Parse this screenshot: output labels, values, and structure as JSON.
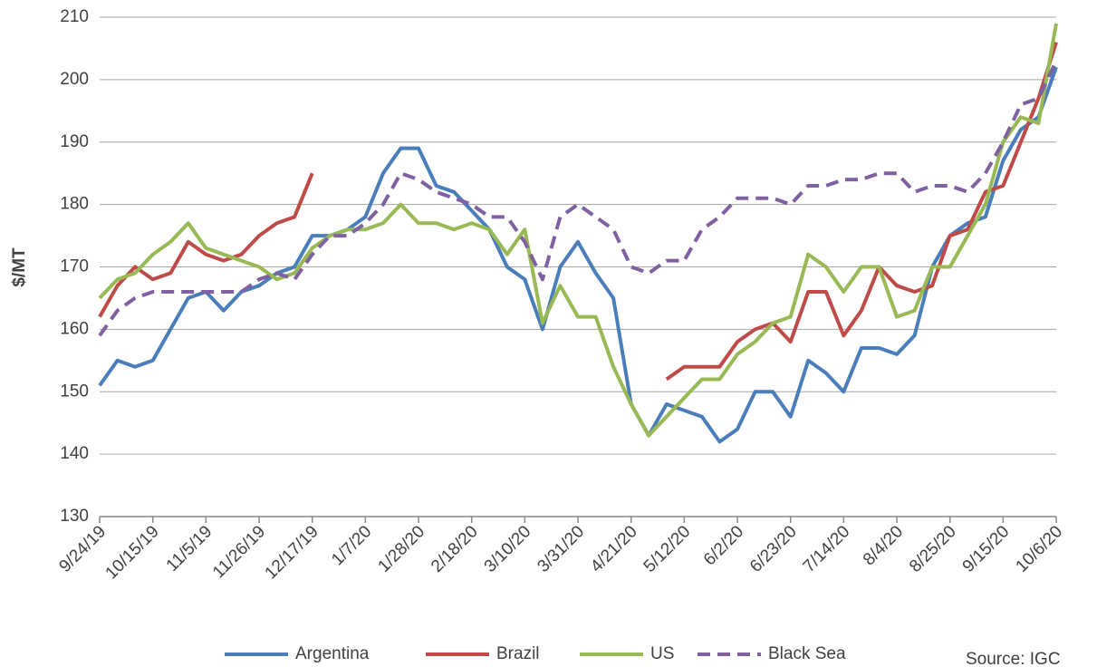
{
  "chart_data": {
    "type": "line",
    "y_label": "$/MT",
    "annotation": "Source: IGC",
    "x": [
      "9/24/19",
      "10/1/19",
      "10/8/19",
      "10/15/19",
      "10/22/19",
      "10/29/19",
      "11/5/19",
      "11/12/19",
      "11/19/19",
      "11/26/19",
      "12/3/19",
      "12/10/19",
      "12/17/19",
      "12/24/19",
      "12/31/19",
      "1/7/20",
      "1/14/20",
      "1/21/20",
      "1/28/20",
      "2/4/20",
      "2/11/20",
      "2/18/20",
      "2/25/20",
      "3/3/20",
      "3/10/20",
      "3/17/20",
      "3/24/20",
      "3/31/20",
      "4/7/20",
      "4/14/20",
      "4/21/20",
      "4/28/20",
      "5/5/20",
      "5/12/20",
      "5/19/20",
      "5/26/20",
      "6/2/20",
      "6/9/20",
      "6/16/20",
      "6/23/20",
      "6/30/20",
      "7/7/20",
      "7/14/20",
      "7/21/20",
      "7/28/20",
      "8/4/20",
      "8/11/20",
      "8/18/20",
      "8/25/20",
      "9/1/20",
      "9/8/20",
      "9/15/20",
      "9/22/20",
      "9/29/20",
      "10/6/20"
    ],
    "xtick_step": 3,
    "ylim": [
      130,
      210
    ],
    "yticks": [
      130,
      140,
      150,
      160,
      170,
      180,
      190,
      200,
      210
    ],
    "grid": true,
    "legend": "bottom",
    "series": [
      {
        "name": "Argentina",
        "color": "#4a7ebb",
        "values": [
          151,
          155,
          154,
          155,
          160,
          165,
          166,
          163,
          166,
          167,
          169,
          170,
          175,
          175,
          176,
          178,
          185,
          189,
          189,
          183,
          182,
          179,
          176,
          170,
          168,
          160,
          170,
          174,
          169,
          165,
          148,
          143,
          148,
          147,
          146,
          142,
          144,
          150,
          150,
          146,
          155,
          153,
          150,
          157,
          157,
          156,
          159,
          170,
          175,
          177,
          178,
          187,
          192,
          194,
          202
        ]
      },
      {
        "name": "Brazil",
        "color": "#be4b48",
        "values": [
          162,
          167,
          170,
          168,
          169,
          174,
          172,
          171,
          172,
          175,
          177,
          178,
          185,
          null,
          null,
          null,
          null,
          null,
          null,
          null,
          null,
          null,
          null,
          null,
          null,
          null,
          null,
          null,
          null,
          null,
          null,
          null,
          152,
          154,
          154,
          154,
          158,
          160,
          161,
          158,
          166,
          166,
          159,
          163,
          170,
          167,
          166,
          167,
          175,
          176,
          182,
          183,
          190,
          197,
          206
        ]
      },
      {
        "name": "US",
        "color": "#98b954",
        "values": [
          165,
          168,
          169,
          172,
          174,
          177,
          173,
          172,
          171,
          170,
          168,
          169,
          173,
          175,
          176,
          176,
          177,
          180,
          177,
          177,
          176,
          177,
          176,
          172,
          176,
          161,
          167,
          162,
          162,
          154,
          148,
          143,
          146,
          149,
          152,
          152,
          156,
          158,
          161,
          162,
          172,
          170,
          166,
          170,
          170,
          162,
          163,
          170,
          170,
          175,
          180,
          190,
          194,
          193,
          209
        ]
      },
      {
        "name": "Black Sea",
        "color": "#7f60a0",
        "dashed": true,
        "values": [
          159,
          163,
          165,
          166,
          166,
          166,
          166,
          166,
          166,
          168,
          169,
          168,
          172,
          175,
          175,
          177,
          180,
          185,
          184,
          182,
          181,
          180,
          178,
          178,
          174,
          168,
          178,
          180,
          178,
          176,
          170,
          169,
          171,
          171,
          176,
          178,
          181,
          181,
          181,
          180,
          183,
          183,
          184,
          184,
          185,
          185,
          182,
          183,
          183,
          182,
          185,
          190,
          196,
          197,
          203
        ]
      }
    ]
  }
}
